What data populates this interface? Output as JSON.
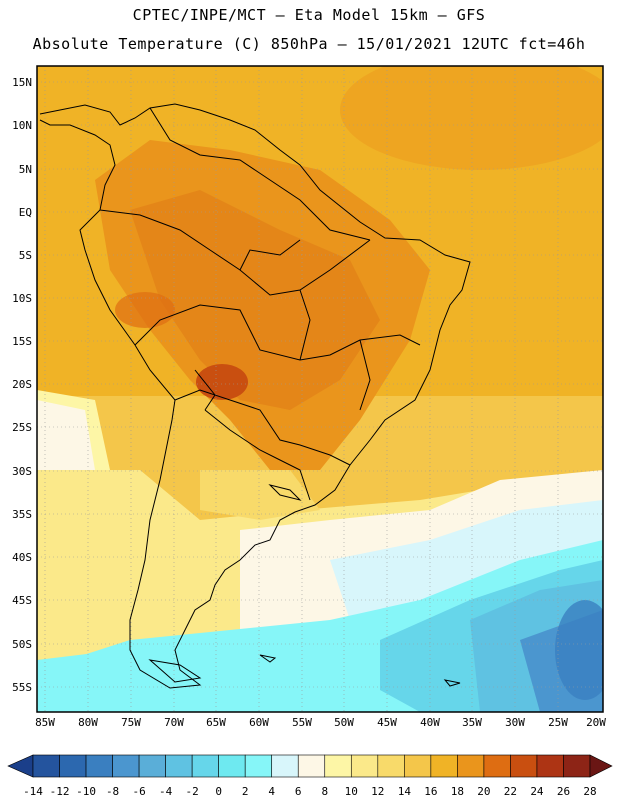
{
  "header": {
    "line1": "CPTEC/INPE/MCT –  Eta Model 15km – GFS",
    "line2": "Absolute Temperature (C) 850hPa – 15/01/2021 12UTC fct=46h"
  },
  "axes": {
    "lat_labels": [
      "15N",
      "10N",
      "5N",
      "EQ",
      "5S",
      "10S",
      "15S",
      "20S",
      "25S",
      "30S",
      "35S",
      "40S",
      "45S",
      "50S",
      "55S"
    ],
    "lon_labels": [
      "85W",
      "80W",
      "75W",
      "70W",
      "65W",
      "60W",
      "55W",
      "50W",
      "45W",
      "40W",
      "35W",
      "30W",
      "25W",
      "20W"
    ]
  },
  "colorbar": {
    "labels": [
      "-14",
      "-12",
      "-10",
      "-8",
      "-6",
      "-4",
      "-2",
      "0",
      "2",
      "4",
      "6",
      "8",
      "10",
      "12",
      "14",
      "16",
      "18",
      "20",
      "22",
      "24",
      "26",
      "28"
    ],
    "colors": [
      "#1b3f8a",
      "#24549e",
      "#2c68af",
      "#3a7fc0",
      "#4b96cf",
      "#5aaed8",
      "#5fc2e2",
      "#66d6ea",
      "#6ee9f0",
      "#86f6f8",
      "#d8f6fb",
      "#fdf7e6",
      "#fdf6a6",
      "#fbe98a",
      "#f8da6a",
      "#f4c64a",
      "#f0b326",
      "#ea951c",
      "#de6d12",
      "#c94f10",
      "#ad3414",
      "#8d2416",
      "#6a1614"
    ]
  },
  "legend_aria": "Temperature color scale"
}
